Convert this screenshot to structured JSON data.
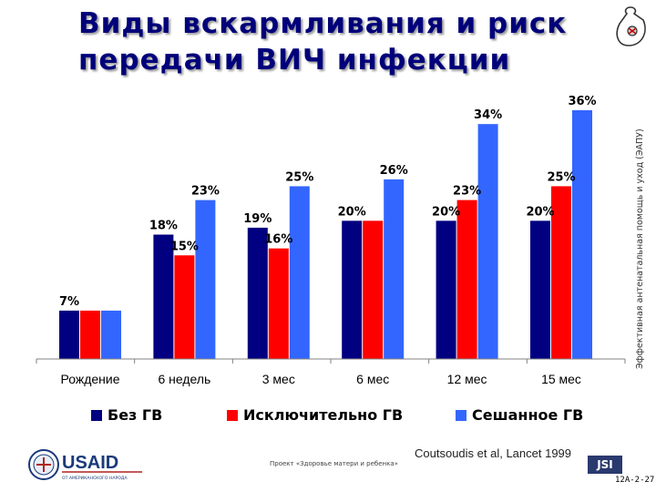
{
  "header": {
    "title_line1": "Виды вскармливания и риск",
    "title_line2": "передачи ВИЧ инфекции",
    "side_text": "Эффективная антенатальная помощь и уход (ЭАПУ)"
  },
  "chart_data": {
    "type": "bar",
    "categories": [
      "Рождение",
      "6 недель",
      "3 мес",
      "6 мес",
      "12 мес",
      "15 мес"
    ],
    "series": [
      {
        "name": "Без ГВ",
        "color": "#000080",
        "values": [
          7,
          18,
          19,
          20,
          20,
          20
        ],
        "labels": [
          "7%",
          "18%",
          "19%",
          "20%",
          "20%",
          "20%"
        ]
      },
      {
        "name": "Исключительно ГВ",
        "color": "#ff0000",
        "values": [
          7,
          15,
          16,
          20,
          23,
          25
        ],
        "labels": [
          "",
          "15%",
          "16%",
          "",
          "23%",
          "25%"
        ]
      },
      {
        "name": "Сешанное ГВ",
        "color": "#3366ff",
        "values": [
          7,
          23,
          25,
          26,
          34,
          36
        ],
        "labels": [
          "",
          "23%",
          "25%",
          "26%",
          "34%",
          "36%"
        ]
      }
    ],
    "ylim": [
      0,
      36
    ],
    "grid": false,
    "legend": "bottom"
  },
  "footer": {
    "logo_text": "USAID",
    "logo_subtext": "ОТ АМЕРИКАНСКОГО НАРОДА",
    "project_text": "Проект «Здоровье матери и ребенка»",
    "citation": "Coutsoudis et al, Lancet 1999",
    "jsi_label": "JSI",
    "slide_code": "12A-2-27"
  }
}
